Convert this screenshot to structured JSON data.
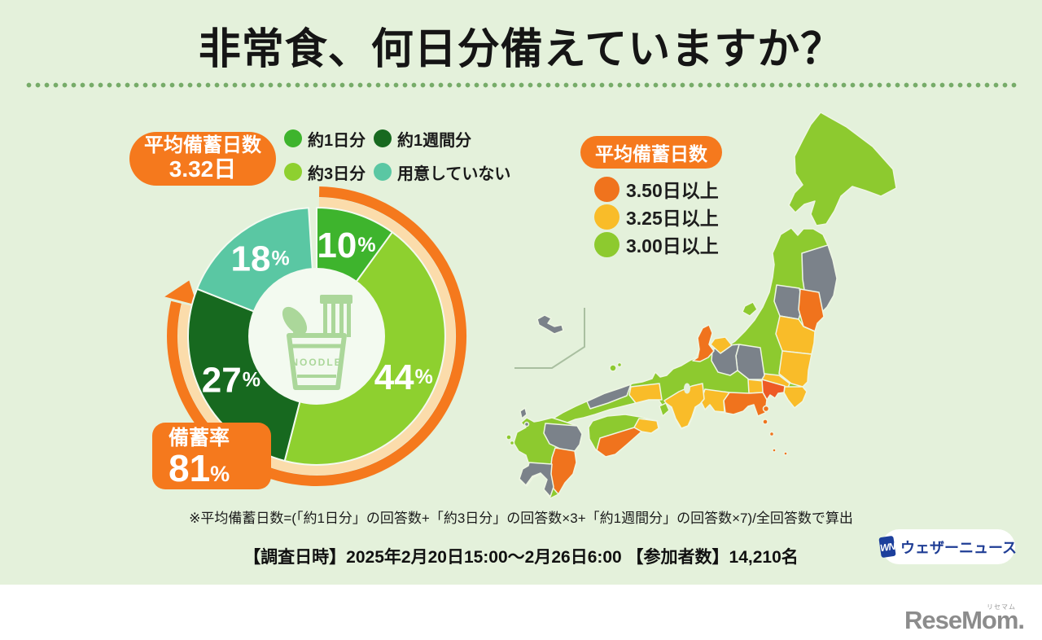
{
  "title": "非常食、何日分備えていますか？",
  "donut": {
    "badge": {
      "line1": "平均備蓄日数",
      "line2": "3.32日"
    },
    "legend": [
      {
        "label": "約1日分",
        "color": "#3eb42d"
      },
      {
        "label": "約1週間分",
        "color": "#17691f"
      },
      {
        "label": "約3日分",
        "color": "#8ed02f"
      },
      {
        "label": "用意していない",
        "color": "#5ac7a3"
      }
    ],
    "rate_badge": {
      "label": "備蓄率",
      "value": "81",
      "unit": "%"
    },
    "center_icon_text": "NOODLE"
  },
  "map": {
    "badge": "平均備蓄日数",
    "legend": [
      {
        "label": "3.50日以上",
        "color": "#f0731d"
      },
      {
        "label": "3.25日以上",
        "color": "#f9bc29"
      },
      {
        "label": "3.00日以上",
        "color": "#8dca2f"
      }
    ]
  },
  "footnote": "※平均備蓄日数=(「約1日分」の回答数+「約3日分」の回答数×3+「約1週間分」の回答数×7)/全回答数で算出",
  "survey_info": "【調査日時】2025年2月20日15:00～2月26日6:00 【参加者数】14,210名",
  "weathernews": {
    "mark": "WN",
    "name": "ウェザーニュース"
  },
  "resemom": {
    "name": "ReseMom.",
    "ruby": "リセマム"
  },
  "chart_data": [
    {
      "type": "pie",
      "title": "非常食の備蓄日数の内訳",
      "labels": [
        "約1日分",
        "約3日分",
        "約1週間分",
        "用意していない"
      ],
      "values": [
        10,
        44,
        27,
        18
      ],
      "unit": "%",
      "colors": [
        "#3eb42d",
        "#8ed02f",
        "#17691f",
        "#5ac7a3"
      ],
      "start_angle_deg": 0,
      "direction": "clockwise",
      "annotations": {
        "average_label": "平均備蓄日数",
        "average_value": "3.32日",
        "stockpile_rate_label": "備蓄率",
        "stockpile_rate_percent": 81
      }
    },
    {
      "type": "heatmap",
      "subtype": "japan-prefecture-choropleth",
      "title": "平均備蓄日数",
      "bins": {
        "3.50日以上": "#f0731d",
        "3.25日以上": "#f9bc29",
        "3.00日以上": "#8dca2f",
        "other": "#7b828a"
      },
      "strong_color": "#ee5a26",
      "strong_regions": [
        "tokyo_kanagawa"
      ],
      "regions": {
        "hokkaido": "3.00日以上",
        "honshu": "3.00日以上",
        "iwate": "other",
        "yamagata": "other",
        "miyagi": "3.50日以上",
        "fukushima": "3.25日以上",
        "tochigi_ibaraki": "3.25日以上",
        "saitama": "3.25日以上",
        "chiba": "3.25日以上",
        "yamanashi": "3.25日以上",
        "tokyo_kanagawa": "3.50日以上",
        "nagano": "other",
        "gifu": "other",
        "toyama": "3.25日以上",
        "ishikawa": "3.50日以上",
        "shizuoka": "3.50日以上",
        "aichi": "3.25日以上",
        "kinki_south": "3.25日以上",
        "okayama": "3.25日以上",
        "shimane": "other",
        "shikoku": "3.00日以上",
        "tokushima": "3.25日以上",
        "kochi": "3.50日以上",
        "kyushu": "3.00日以上",
        "oita": "other",
        "miyazaki": "3.50日以上",
        "kagoshima": "other",
        "okinawa": "other",
        "sado": "3.00日以上",
        "awaji": "3.00日以上",
        "oki": "3.00日以上",
        "goto": "3.00日以上",
        "tsushima": "other",
        "izu_islands": "3.50日以上"
      }
    }
  ]
}
